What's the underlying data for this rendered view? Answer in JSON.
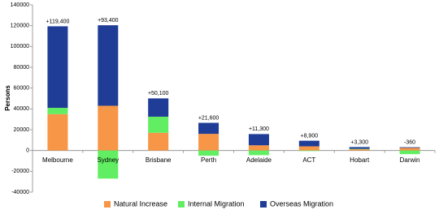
{
  "chart_data": {
    "type": "stacked-bar",
    "y_label": "Persons",
    "categories": [
      "Melbourne",
      "Sydney",
      "Brisbane",
      "Perth",
      "Adelaide",
      "ACT",
      "Hobart",
      "Darwin"
    ],
    "series": [
      {
        "name": "Natural Increase",
        "color": "#f79646",
        "values": [
          35000,
          43000,
          17000,
          16000,
          5000,
          4000,
          1200,
          2500
        ]
      },
      {
        "name": "Internal Migration",
        "color": "#62ee62",
        "values": [
          6000,
          -27000,
          15500,
          -5000,
          -4500,
          -500,
          400,
          -3500
        ]
      },
      {
        "name": "Overseas Migration",
        "color": "#1f3d97",
        "values": [
          78400,
          77400,
          17600,
          10600,
          10800,
          5400,
          1700,
          640
        ]
      }
    ],
    "totals": {
      "values": [
        119400,
        93400,
        50100,
        21600,
        11300,
        8900,
        3300,
        -360
      ],
      "value_labels": [
        "+119,400",
        "+93,400",
        "+50,100",
        "+21,600",
        "+11,300",
        "+8,900",
        "+3,300",
        "-360"
      ]
    },
    "ylim": [
      -40000,
      140000
    ],
    "yticks": [
      -40000,
      -20000,
      0,
      20000,
      40000,
      60000,
      80000,
      100000,
      120000,
      140000
    ],
    "legend": "bottom"
  }
}
